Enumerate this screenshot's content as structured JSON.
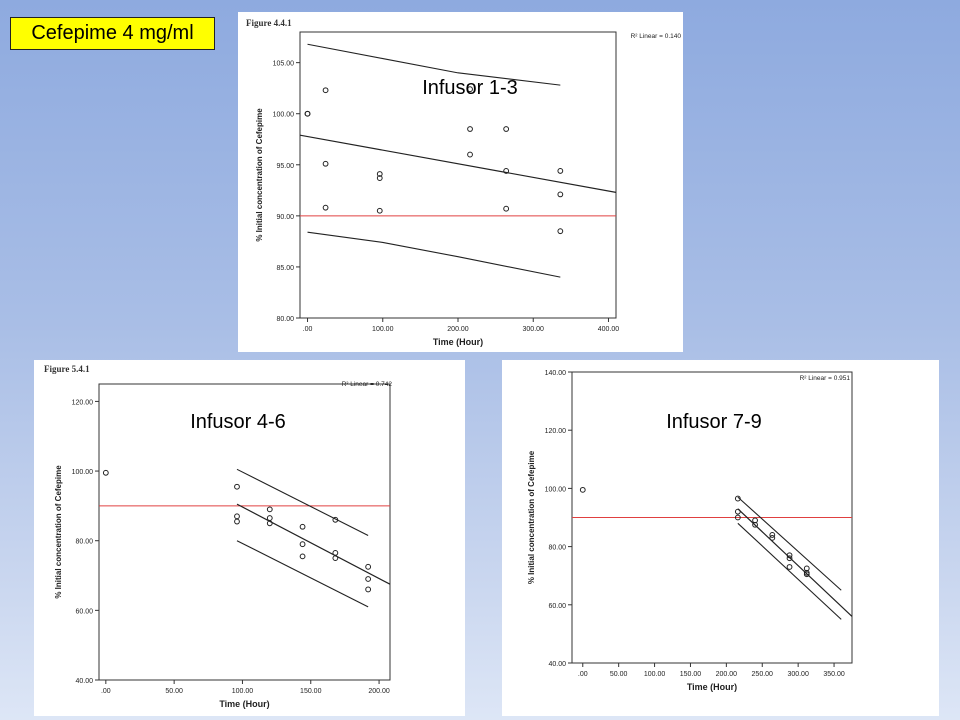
{
  "slide": {
    "title": "Cefepime 4 mg/ml"
  },
  "chart_data": [
    {
      "type": "scatter",
      "figure_label": "Figure 4.4.1",
      "title": "Infusor 1-3",
      "r2_text": "R² Linear = 0.140",
      "xlabel": "Time (Hour)",
      "ylabel": "% Initial concentration of Cefepime",
      "xlim": [
        -10,
        410
      ],
      "ylim": [
        80,
        108
      ],
      "xticks": [
        0,
        100,
        200,
        300,
        400
      ],
      "xtick_labels": [
        ".00",
        "100.00",
        "200.00",
        "300.00",
        "400.00"
      ],
      "yticks": [
        80,
        85,
        90,
        95,
        100,
        105
      ],
      "ytick_labels": [
        "80.00",
        "85.00",
        "90.00",
        "95.00",
        "100.00",
        "105.00"
      ],
      "reference_line_y": 90,
      "points": [
        [
          0,
          100.0
        ],
        [
          0,
          100.0
        ],
        [
          24,
          102.3
        ],
        [
          24,
          95.1
        ],
        [
          24,
          90.8
        ],
        [
          96,
          94.1
        ],
        [
          96,
          93.7
        ],
        [
          96,
          90.5
        ],
        [
          216,
          102.4
        ],
        [
          216,
          98.5
        ],
        [
          216,
          96.0
        ],
        [
          264,
          98.5
        ],
        [
          264,
          94.4
        ],
        [
          264,
          90.7
        ],
        [
          336,
          94.4
        ],
        [
          336,
          92.1
        ],
        [
          336,
          88.5
        ]
      ],
      "fit_line": [
        [
          -10,
          97.9
        ],
        [
          410,
          92.3
        ]
      ],
      "ci_upper": [
        [
          0,
          106.8
        ],
        [
          100,
          105.4
        ],
        [
          200,
          104.0
        ],
        [
          336,
          102.8
        ]
      ],
      "ci_lower": [
        [
          0,
          88.4
        ],
        [
          100,
          87.4
        ],
        [
          200,
          86.0
        ],
        [
          336,
          84.0
        ]
      ]
    },
    {
      "type": "scatter",
      "figure_label": "Figure 5.4.1",
      "title": "Infusor 4-6",
      "r2_text": "R² Linear = 0.742",
      "xlabel": "Time (Hour)",
      "ylabel": "% Initial concentration of Cefepime",
      "xlim": [
        -5,
        208
      ],
      "ylim": [
        40,
        125
      ],
      "xticks": [
        0,
        50,
        100,
        150,
        200
      ],
      "xtick_labels": [
        ".00",
        "50.00",
        "100.00",
        "150.00",
        "200.00"
      ],
      "yticks": [
        40,
        60,
        80,
        100,
        120
      ],
      "ytick_labels": [
        "40.00",
        "60.00",
        "80.00",
        "100.00",
        "120.00"
      ],
      "reference_line_y": 90,
      "points": [
        [
          0,
          99.5
        ],
        [
          96,
          95.5
        ],
        [
          96,
          87.0
        ],
        [
          96,
          85.5
        ],
        [
          120,
          89.0
        ],
        [
          120,
          86.5
        ],
        [
          120,
          85.0
        ],
        [
          144,
          84.0
        ],
        [
          144,
          79.0
        ],
        [
          144,
          75.5
        ],
        [
          168,
          86.0
        ],
        [
          168,
          76.5
        ],
        [
          168,
          75.0
        ],
        [
          192,
          72.5
        ],
        [
          192,
          69.0
        ],
        [
          192,
          66.0
        ]
      ],
      "fit_line": [
        [
          96,
          90.5
        ],
        [
          208,
          67.5
        ]
      ],
      "ci_upper": [
        [
          96,
          100.5
        ],
        [
          192,
          81.5
        ]
      ],
      "ci_lower": [
        [
          96,
          80.0
        ],
        [
          192,
          61.0
        ]
      ]
    },
    {
      "type": "scatter",
      "figure_label": "",
      "title": "Infusor 7-9",
      "r2_text": "R² Linear = 0.951",
      "xlabel": "Time (Hour)",
      "ylabel": "% Initial concentration of Cefepime",
      "xlim": [
        -15,
        375
      ],
      "ylim": [
        40,
        140
      ],
      "xticks": [
        0,
        50,
        100,
        150,
        200,
        250,
        300,
        350
      ],
      "xtick_labels": [
        ".00",
        "50.00",
        "100.00",
        "150.00",
        "200.00",
        "250.00",
        "300.00",
        "350.00"
      ],
      "yticks": [
        40,
        60,
        80,
        100,
        120,
        140
      ],
      "ytick_labels": [
        "40.00",
        "60.00",
        "80.00",
        "100.00",
        "120.00",
        "140.00"
      ],
      "reference_line_y": 90,
      "points": [
        [
          0,
          99.5
        ],
        [
          216,
          96.5
        ],
        [
          216,
          92.0
        ],
        [
          216,
          90.0
        ],
        [
          240,
          89.0
        ],
        [
          240,
          87.5
        ],
        [
          264,
          84.0
        ],
        [
          264,
          83.0
        ],
        [
          288,
          77.0
        ],
        [
          288,
          76.0
        ],
        [
          288,
          73.0
        ],
        [
          312,
          72.5
        ],
        [
          312,
          71.0
        ],
        [
          312,
          70.5
        ]
      ],
      "fit_line": [
        [
          216,
          93.0
        ],
        [
          375,
          56.0
        ]
      ],
      "ci_upper": [
        [
          216,
          97.0
        ],
        [
          360,
          65.0
        ]
      ],
      "ci_lower": [
        [
          216,
          88.0
        ],
        [
          360,
          55.0
        ]
      ]
    }
  ]
}
